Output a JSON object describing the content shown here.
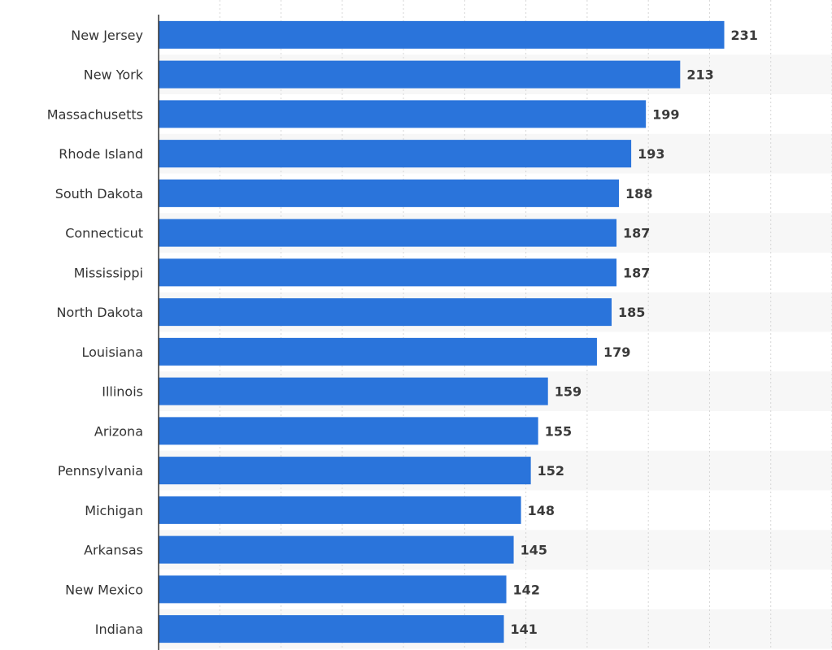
{
  "chart_data": {
    "type": "bar",
    "orientation": "horizontal",
    "categories": [
      "New Jersey",
      "New York",
      "Massachusetts",
      "Rhode Island",
      "South Dakota",
      "Connecticut",
      "Mississippi",
      "North Dakota",
      "Louisiana",
      "Illinois",
      "Arizona",
      "Pennsylvania",
      "Michigan",
      "Arkansas",
      "New Mexico",
      "Indiana"
    ],
    "values": [
      231,
      213,
      199,
      193,
      188,
      187,
      187,
      185,
      179,
      159,
      155,
      152,
      148,
      145,
      142,
      141
    ],
    "value_labels": [
      "231",
      "213",
      "199",
      "193",
      "188",
      "187",
      "187",
      "185",
      "179",
      "159",
      "155",
      "152",
      "148",
      "145",
      "142",
      "141"
    ],
    "xlim": [
      0,
      275
    ],
    "grid": "vertical dashed",
    "bar_color": "#2a74db",
    "band_color": "#f7f7f7",
    "title": "",
    "xlabel": "",
    "ylabel": ""
  }
}
